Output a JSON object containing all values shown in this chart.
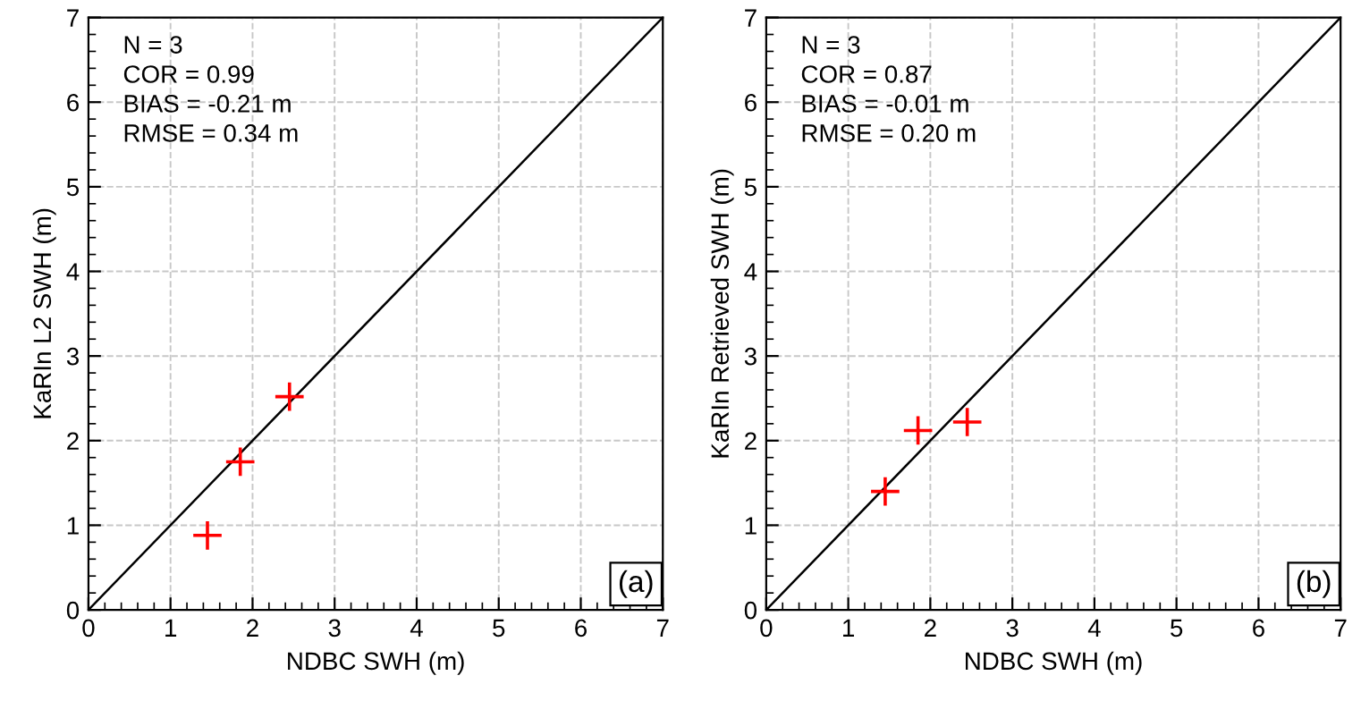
{
  "chart_data": [
    {
      "type": "scatter",
      "xlabel": "NDBC SWH (m)",
      "ylabel": "KaRIn L2 SWH (m)",
      "xlim": [
        0,
        7
      ],
      "ylim": [
        0,
        7
      ],
      "xticks": [
        0,
        1,
        2,
        3,
        4,
        5,
        6,
        7
      ],
      "yticks": [
        0,
        1,
        2,
        3,
        4,
        5,
        6,
        7
      ],
      "grid": true,
      "series": [
        {
          "type": "line",
          "color": "#000000",
          "marker": "none",
          "x": [
            0,
            7
          ],
          "values": [
            0,
            7
          ]
        },
        {
          "color": "#ff0000",
          "marker": "cross",
          "x": [
            1.45,
            1.85,
            2.45
          ],
          "values": [
            0.88,
            1.75,
            2.52
          ]
        }
      ],
      "annotations": [
        "N = 3\nCOR = 0.99\nBIAS = -0.21 m\nRMSE = 0.34 m",
        "(a)"
      ]
    },
    {
      "type": "scatter",
      "xlabel": "NDBC SWH (m)",
      "ylabel": "KaRIn Retrieved SWH (m)",
      "xlim": [
        0,
        7
      ],
      "ylim": [
        0,
        7
      ],
      "xticks": [
        0,
        1,
        2,
        3,
        4,
        5,
        6,
        7
      ],
      "yticks": [
        0,
        1,
        2,
        3,
        4,
        5,
        6,
        7
      ],
      "grid": true,
      "series": [
        {
          "type": "line",
          "color": "#000000",
          "marker": "none",
          "x": [
            0,
            7
          ],
          "values": [
            0,
            7
          ]
        },
        {
          "color": "#ff0000",
          "marker": "cross",
          "x": [
            1.45,
            1.85,
            2.45
          ],
          "values": [
            1.4,
            2.12,
            2.22
          ]
        }
      ],
      "annotations": [
        "N = 3\nCOR = 0.87\nBIAS = -0.01 m\nRMSE = 0.20 m",
        "(b)"
      ]
    }
  ]
}
